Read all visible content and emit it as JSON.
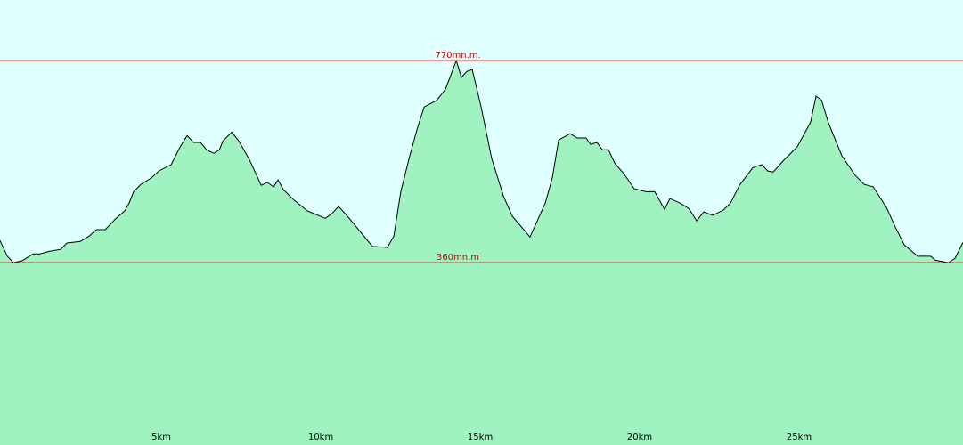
{
  "chart_data": {
    "type": "area",
    "x": [
      -0.06,
      0.17,
      0.36,
      0.64,
      0.98,
      1.2,
      1.48,
      1.84,
      2.04,
      2.46,
      2.74,
      2.96,
      3.24,
      3.58,
      3.85,
      3.99,
      4.13,
      4.36,
      4.69,
      4.92,
      5.31,
      5.59,
      5.81,
      6.01,
      6.23,
      6.42,
      6.65,
      6.82,
      6.93,
      7.21,
      7.43,
      7.77,
      8.13,
      8.32,
      8.52,
      8.66,
      8.83,
      9.16,
      9.58,
      10.14,
      10.34,
      10.56,
      10.84,
      11.62,
      12.09,
      12.29,
      12.51,
      12.79,
      13.02,
      13.24,
      13.63,
      13.91,
      14.25,
      14.41,
      14.58,
      14.75,
      15.03,
      15.36,
      15.73,
      16.01,
      16.42,
      16.56,
      16.7,
      17.04,
      17.26,
      17.46,
      17.82,
      18.04,
      18.32,
      18.46,
      18.66,
      18.83,
      19.02,
      19.22,
      19.5,
      19.83,
      20.2,
      20.47,
      20.78,
      20.95,
      21.26,
      21.54,
      21.79,
      22.01,
      22.29,
      22.63,
      22.85,
      23.13,
      23.55,
      23.83,
      24.02,
      24.19,
      24.52,
      24.94,
      25.36,
      25.53,
      25.7,
      25.92,
      26.34,
      26.76,
      27.04,
      27.32,
      27.74,
      28.02,
      28.3,
      28.72,
      29.13,
      29.27,
      29.69,
      29.89,
      30.14
    ],
    "values": [
      405,
      373,
      360,
      364,
      378,
      378,
      383,
      387,
      400,
      403,
      414,
      427,
      427,
      450,
      465,
      481,
      504,
      519,
      532,
      546,
      559,
      595,
      618,
      604,
      604,
      589,
      582,
      589,
      607,
      625,
      607,
      568,
      517,
      523,
      514,
      528,
      508,
      487,
      465,
      450,
      459,
      474,
      454,
      393,
      391,
      414,
      504,
      577,
      631,
      676,
      689,
      712,
      770,
      736,
      748,
      752,
      676,
      571,
      495,
      454,
      423,
      412,
      432,
      481,
      532,
      609,
      622,
      613,
      613,
      600,
      604,
      589,
      589,
      562,
      541,
      510,
      504,
      504,
      468,
      490,
      481,
      470,
      445,
      463,
      456,
      467,
      481,
      517,
      553,
      559,
      546,
      544,
      568,
      595,
      645,
      698,
      690,
      644,
      577,
      537,
      519,
      514,
      472,
      432,
      396,
      373,
      373,
      365,
      360,
      369,
      401
    ],
    "xlim": [
      -0.06,
      30.14
    ],
    "ylim": [
      -10,
      893
    ],
    "xticks": [
      {
        "value": 5,
        "label": "5km"
      },
      {
        "value": 10,
        "label": "10km"
      },
      {
        "value": 15,
        "label": "15km"
      },
      {
        "value": 20,
        "label": "20km"
      },
      {
        "value": 25,
        "label": "25km"
      }
    ],
    "yticks": [
      {
        "value": 360,
        "label": "360mn.m"
      },
      {
        "value": 770,
        "label": "770mn.m."
      }
    ],
    "color": "#a0f2c0",
    "line_color": "#000000",
    "grid_color": "#d00000",
    "grid": true
  }
}
